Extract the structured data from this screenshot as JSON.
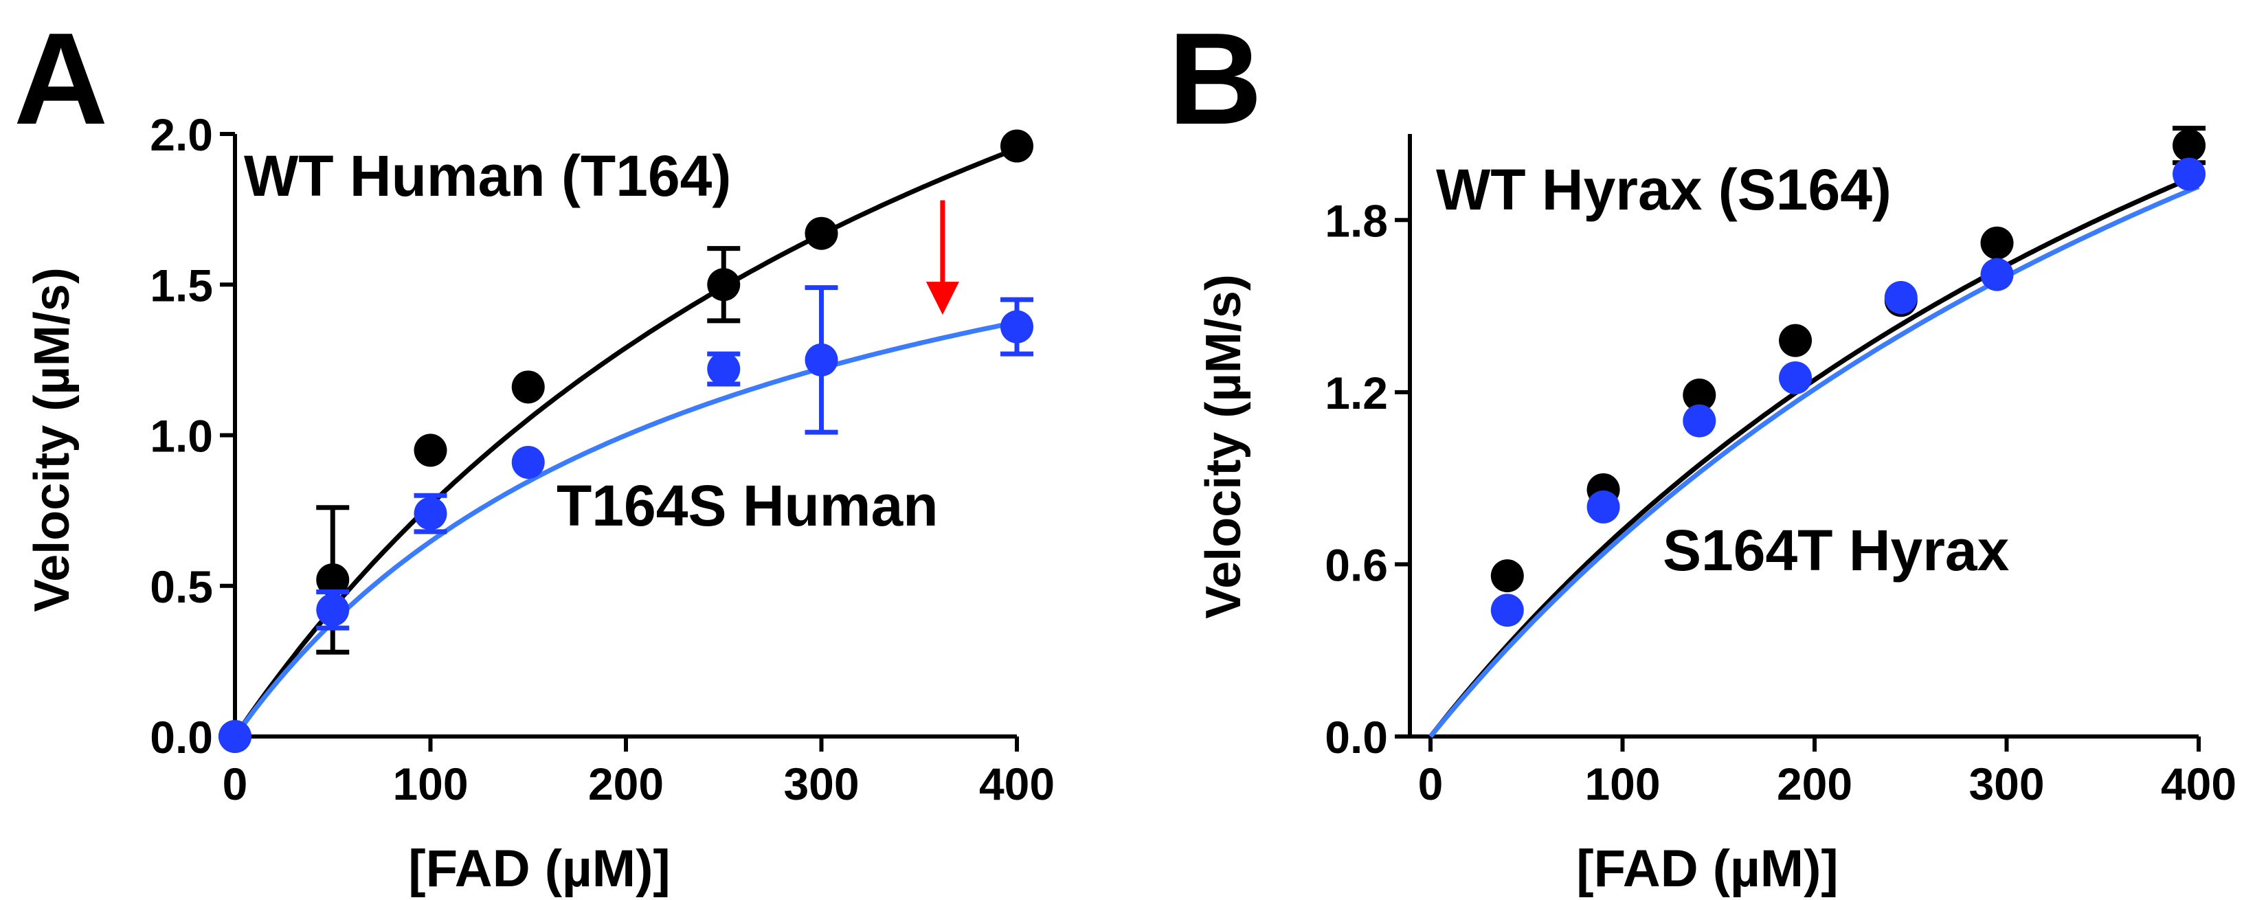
{
  "colors": {
    "wt": "#000000",
    "mutant": "#1f3cff",
    "fit_mutant": "#3a7bff",
    "arrow": "#ff0000"
  },
  "chart_data": [
    {
      "panel": "A",
      "type": "scatter",
      "xlabel": "[FAD (µM)]",
      "ylabel": "Velocity (µM/s)",
      "xlim": [
        0,
        400
      ],
      "ylim": [
        0,
        2.0
      ],
      "xticks": [
        "0",
        "100",
        "200",
        "300",
        "400"
      ],
      "yticks": [
        "0.0",
        "0.5",
        "1.0",
        "1.5",
        "2.0"
      ],
      "series": [
        {
          "name": "WT Human (T164)",
          "color": "wt",
          "x": [
            0,
            50,
            100,
            150,
            250,
            300,
            400
          ],
          "y": [
            0.0,
            0.52,
            0.95,
            1.16,
            1.5,
            1.67,
            1.96
          ],
          "err": [
            0,
            0.24,
            0,
            0,
            0.12,
            0,
            0
          ],
          "fit": {
            "vmax": 4.0,
            "km": 420
          }
        },
        {
          "name": "T164S Human",
          "color": "mutant",
          "x": [
            0,
            50,
            100,
            150,
            250,
            300,
            400
          ],
          "y": [
            0.0,
            0.42,
            0.74,
            0.91,
            1.22,
            1.25,
            1.36
          ],
          "err": [
            0,
            0.06,
            0.06,
            0,
            0.05,
            0.24,
            0.09
          ],
          "fit": {
            "vmax": 2.2,
            "km": 240
          }
        }
      ],
      "annotations": [
        {
          "type": "arrow",
          "x": 362,
          "y_from": 1.78,
          "y_to": 1.4,
          "color": "arrow"
        }
      ]
    },
    {
      "panel": "B",
      "type": "scatter",
      "xlabel": "[FAD (µM)]",
      "ylabel": "Velocity (µM/s)",
      "xlim": [
        0,
        400
      ],
      "ylim": [
        0,
        2.1
      ],
      "xticks": [
        "0",
        "100",
        "200",
        "300",
        "400"
      ],
      "yticks": [
        "0.0",
        "0.6",
        "1.2",
        "1.8"
      ],
      "series": [
        {
          "name": "WT Hyrax (S164)",
          "color": "wt",
          "x": [
            40,
            90,
            140,
            190,
            245,
            295,
            395
          ],
          "y": [
            0.56,
            0.86,
            1.19,
            1.38,
            1.52,
            1.72,
            2.06
          ],
          "err": [
            0,
            0,
            0,
            0,
            0,
            0,
            0.06
          ],
          "fit": {
            "vmax": 4.6,
            "km": 540
          }
        },
        {
          "name": "S164T Hyrax",
          "color": "mutant",
          "x": [
            40,
            90,
            140,
            190,
            245,
            295,
            395
          ],
          "y": [
            0.44,
            0.8,
            1.1,
            1.25,
            1.53,
            1.61,
            1.96
          ],
          "err": [
            0,
            0,
            0,
            0,
            0,
            0,
            0
          ],
          "fit": {
            "vmax": 4.6,
            "km": 560
          }
        }
      ]
    }
  ],
  "panels": {
    "A": {
      "letter": "A",
      "title": "WT Human (T164)",
      "mutant_label": "T164S Human"
    },
    "B": {
      "letter": "B",
      "title": "WT Hyrax (S164)",
      "mutant_label": "S164T Hyrax"
    }
  }
}
